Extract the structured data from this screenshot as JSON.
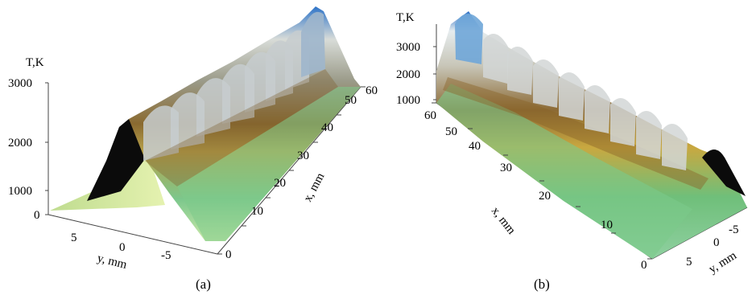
{
  "figure": {
    "panels": [
      {
        "caption": "(a)",
        "z_axis_label": "T,K",
        "x_axis_label": "x, mm",
        "y_axis_label": "y, mm",
        "z_ticks": [
          "0",
          "1000",
          "2000",
          "3000"
        ],
        "x_ticks": [
          "0",
          "10",
          "20",
          "30",
          "40",
          "50",
          "60"
        ],
        "y_ticks": [
          "5",
          "0",
          "-5"
        ]
      },
      {
        "caption": "(b)",
        "z_axis_label": "T,K",
        "x_axis_label": "x, mm",
        "y_axis_label": "y, mm",
        "z_ticks": [
          "1000",
          "2000",
          "3000"
        ],
        "x_ticks": [
          "0",
          "10",
          "20",
          "30",
          "40",
          "50",
          "60"
        ],
        "y_ticks": [
          "5",
          "0",
          "-5"
        ]
      }
    ]
  },
  "chart_data": [
    {
      "type": "surface3d",
      "x_axis_label": "x, mm",
      "y_axis_label": "y, mm",
      "z_axis_label": "T,K",
      "xlim": [
        0,
        60
      ],
      "ylim": [
        -8,
        8
      ],
      "zlim": [
        0,
        3000
      ],
      "peak_count": 11,
      "peak_temperature_K": 3000
    },
    {
      "type": "surface3d",
      "x_axis_label": "x, mm",
      "y_axis_label": "y, mm",
      "z_axis_label": "T,K",
      "xlim": [
        0,
        60
      ],
      "ylim": [
        -8,
        8
      ],
      "zlim": [
        1000,
        3000
      ],
      "peak_count": 11,
      "peak_temperature_K": 3000
    }
  ]
}
